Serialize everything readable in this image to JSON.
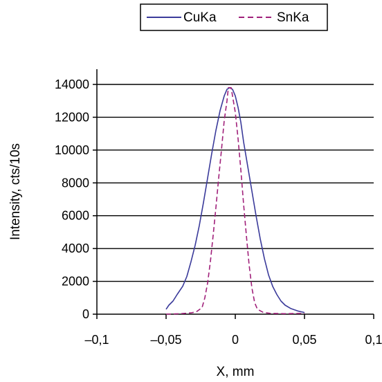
{
  "chart_data": {
    "type": "line",
    "xlabel": "X, mm",
    "ylabel": "Intensity, cts/10s",
    "xlim": [
      -0.1,
      0.1
    ],
    "ylim": [
      0,
      14000
    ],
    "x_ticks": [
      -0.1,
      -0.05,
      0,
      0.05,
      0.1
    ],
    "x_tick_labels": [
      "–0,1",
      "–0,05",
      "0",
      "0,05",
      "0,1"
    ],
    "y_ticks": [
      0,
      2000,
      4000,
      6000,
      8000,
      10000,
      12000,
      14000
    ],
    "y_tick_labels": [
      "0",
      "2000",
      "4000",
      "6000",
      "8000",
      "10000",
      "12000",
      "14000"
    ],
    "grid": "horizontal",
    "legend_position": "top",
    "series": [
      {
        "name": "CuKa",
        "color": "#3a3a9a",
        "style": "solid",
        "points": [
          [
            -0.05,
            300
          ],
          [
            -0.048,
            550
          ],
          [
            -0.045,
            800
          ],
          [
            -0.042,
            1200
          ],
          [
            -0.038,
            1700
          ],
          [
            -0.035,
            2300
          ],
          [
            -0.032,
            3200
          ],
          [
            -0.029,
            4200
          ],
          [
            -0.026,
            5400
          ],
          [
            -0.023,
            6800
          ],
          [
            -0.02,
            8300
          ],
          [
            -0.017,
            9800
          ],
          [
            -0.014,
            11200
          ],
          [
            -0.011,
            12400
          ],
          [
            -0.008,
            13300
          ],
          [
            -0.006,
            13700
          ],
          [
            -0.004,
            13800
          ],
          [
            -0.002,
            13700
          ],
          [
            0.0,
            13300
          ],
          [
            0.002,
            12600
          ],
          [
            0.004,
            11700
          ],
          [
            0.006,
            10500
          ],
          [
            0.009,
            9000
          ],
          [
            0.012,
            7500
          ],
          [
            0.015,
            6000
          ],
          [
            0.018,
            4600
          ],
          [
            0.021,
            3400
          ],
          [
            0.024,
            2400
          ],
          [
            0.027,
            1700
          ],
          [
            0.03,
            1200
          ],
          [
            0.033,
            800
          ],
          [
            0.036,
            550
          ],
          [
            0.04,
            350
          ],
          [
            0.045,
            200
          ],
          [
            0.05,
            100
          ]
        ]
      },
      {
        "name": "SnKa",
        "color": "#a0207a",
        "style": "dashed",
        "points": [
          [
            -0.05,
            0
          ],
          [
            -0.04,
            30
          ],
          [
            -0.032,
            80
          ],
          [
            -0.028,
            150
          ],
          [
            -0.024,
            400
          ],
          [
            -0.022,
            1000
          ],
          [
            -0.02,
            1900
          ],
          [
            -0.018,
            3200
          ],
          [
            -0.016,
            4800
          ],
          [
            -0.014,
            6500
          ],
          [
            -0.012,
            8300
          ],
          [
            -0.01,
            10000
          ],
          [
            -0.008,
            11800
          ],
          [
            -0.006,
            13000
          ],
          [
            -0.005,
            13800
          ],
          [
            -0.003,
            13800
          ],
          [
            -0.002,
            13300
          ],
          [
            0.0,
            12300
          ],
          [
            0.002,
            10700
          ],
          [
            0.004,
            8800
          ],
          [
            0.006,
            6700
          ],
          [
            0.008,
            4800
          ],
          [
            0.01,
            3000
          ],
          [
            0.012,
            1600
          ],
          [
            0.014,
            700
          ],
          [
            0.016,
            300
          ],
          [
            0.02,
            120
          ],
          [
            0.025,
            50
          ],
          [
            0.035,
            30
          ],
          [
            0.05,
            50
          ]
        ]
      }
    ]
  }
}
